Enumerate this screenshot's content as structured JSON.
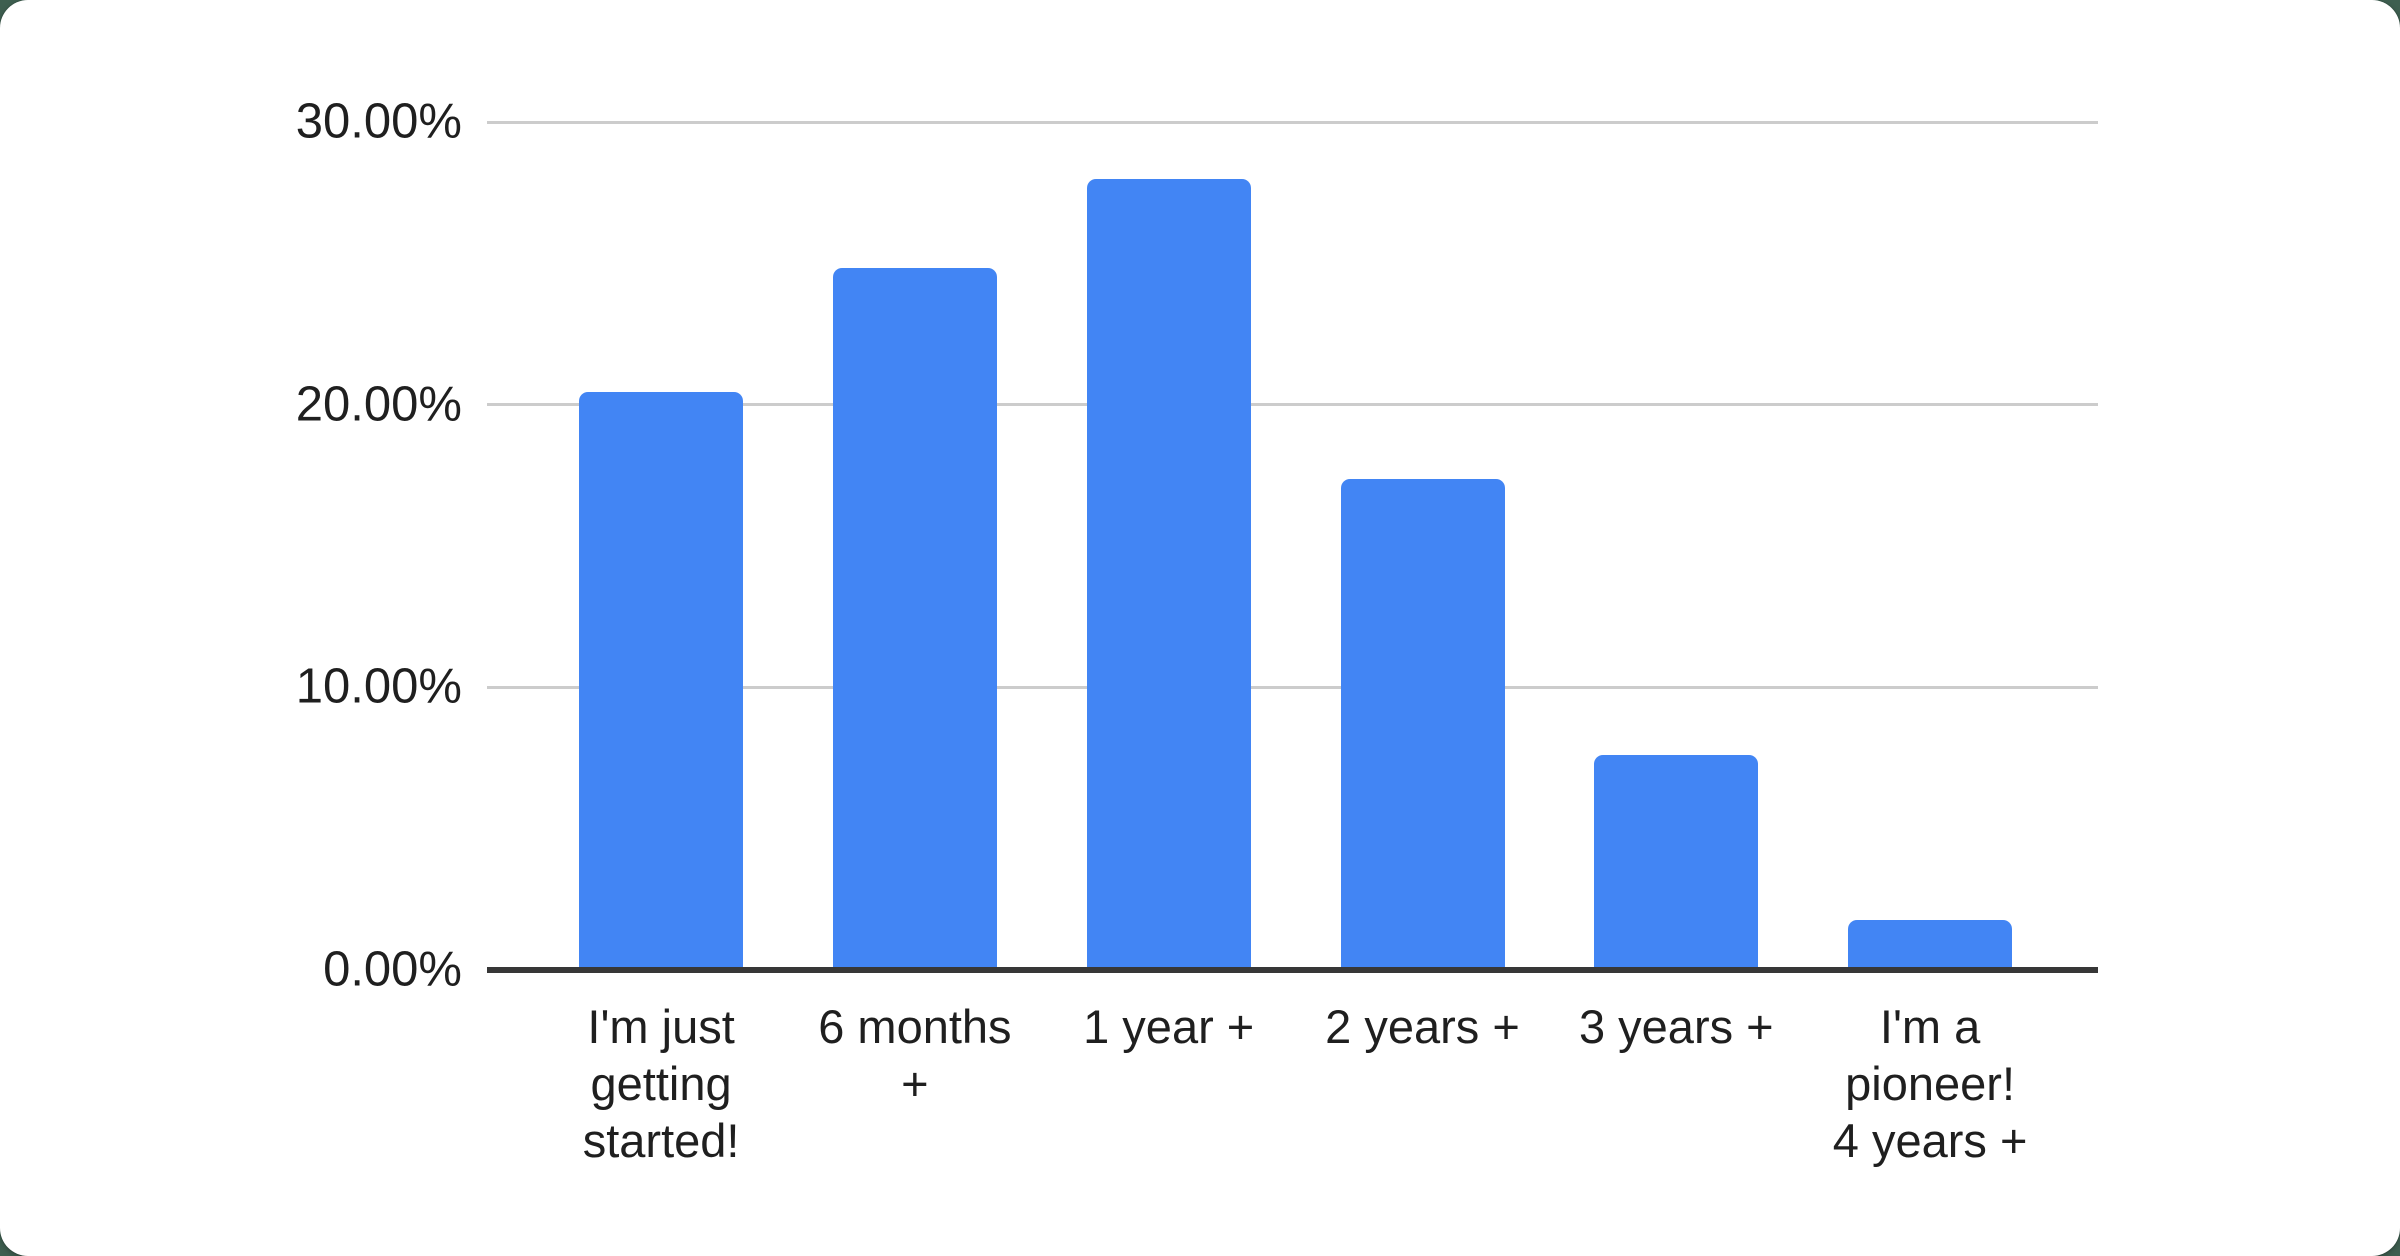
{
  "chart_data": {
    "type": "bar",
    "title": "",
    "xlabel": "",
    "ylabel": "",
    "categories": [
      "I'm just getting started!",
      "6 months +",
      "1 year +",
      "2 years +",
      "3 years +",
      "I'm a pioneer! 4 years +"
    ],
    "values": [
      20.45,
      24.83,
      27.97,
      17.38,
      7.59,
      1.78
    ],
    "value_format": "percent",
    "ylim": [
      0,
      30
    ],
    "grid": true,
    "legend": "none",
    "y_ticks": [
      {
        "label": "30.00%",
        "value": 30
      },
      {
        "label": "20.00%",
        "value": 20
      },
      {
        "label": "10.00%",
        "value": 10
      },
      {
        "label": "0.00%",
        "value": 0
      }
    ],
    "x_tick_lines": [
      [
        "I'm just",
        "getting",
        "started!"
      ],
      [
        "6 months",
        "+"
      ],
      [
        "1 year +"
      ],
      [
        "2 years +"
      ],
      [
        "3 years +"
      ],
      [
        "I'm a",
        "pioneer!",
        "4 years +"
      ]
    ],
    "colors": {
      "bar": "#4285f4",
      "gridline": "#cccccc",
      "axis": "#373737",
      "tick_text": "#1f1f1f",
      "card_bg": "#ffffff",
      "page_bg": "#3e5f50"
    }
  }
}
